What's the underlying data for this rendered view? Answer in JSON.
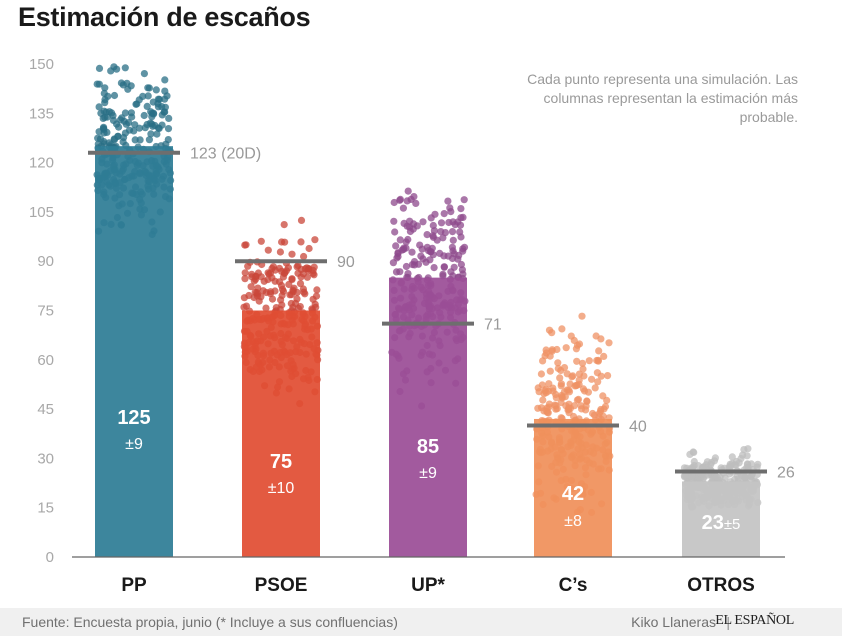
{
  "title": "Estimación de escaños",
  "note": "Cada punto representa una simulación. Las columnas representan la estimación más probable.",
  "footer": {
    "source": "Fuente: Encuesta propia, junio (* Incluye a sus confluencias)",
    "author": "Kiko Llaneras",
    "separator": "|",
    "logo": "EL ESPAÑOL"
  },
  "chart_data": {
    "type": "bar",
    "categories": [
      "PP",
      "PSOE",
      "UP*",
      "C’s",
      "OTROS"
    ],
    "series": [
      {
        "values": [
          125,
          75,
          85,
          42,
          23
        ],
        "margins": [
          "±9",
          "±10",
          "±9",
          "±8",
          "±5"
        ]
      }
    ],
    "previous_results": {
      "values": [
        123,
        90,
        71,
        40,
        26
      ],
      "labels": [
        "123 (20D)",
        "90",
        "71",
        "40",
        "26"
      ]
    },
    "simulation_ranges": [
      [
        93,
        150
      ],
      [
        40,
        103
      ],
      [
        42,
        112
      ],
      [
        10,
        80
      ],
      [
        15,
        35
      ]
    ],
    "colors": [
      "#2e7d96",
      "#e14d33",
      "#9b4d97",
      "#f0905a",
      "#c4c4c4"
    ],
    "dot_colors": [
      "#2a6f85",
      "#c9473a",
      "#8e4a8c",
      "#ef9264",
      "#bdbdbd"
    ],
    "marker_color": "#6e6e6e",
    "ylim": [
      0,
      150
    ],
    "yticks": [
      0,
      15,
      30,
      45,
      60,
      75,
      90,
      105,
      120,
      135,
      150
    ],
    "grid": false
  }
}
